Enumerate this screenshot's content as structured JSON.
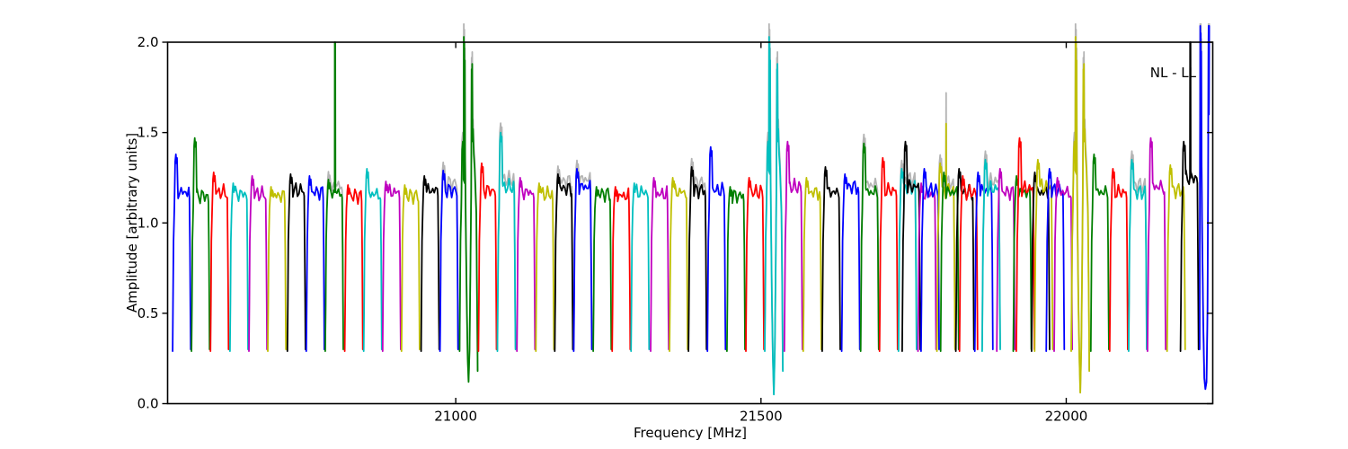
{
  "chart_data": {
    "type": "line",
    "title": "",
    "xlabel": "Frequency [MHz]",
    "ylabel": "Amplitude [arbitrary units]",
    "annotation": "NL - LL",
    "xlim": [
      20528,
      22240
    ],
    "ylim": [
      0.0,
      2.0
    ],
    "xticks": [
      21000,
      21500,
      22000
    ],
    "yticks": [
      0.0,
      0.5,
      1.0,
      1.5,
      2.0
    ],
    "ytick_labels": [
      "0.0",
      "0.5",
      "1.0",
      "1.5",
      "2.0"
    ],
    "grid": false,
    "legend": "none",
    "frame_color": "#000000",
    "background": "#ffffff",
    "palette": {
      "b": "#0000ff",
      "g": "#007f00",
      "r": "#ff0000",
      "c": "#00bfbf",
      "m": "#bf00bf",
      "y": "#bfbf00",
      "k": "#000000",
      "gray": "#b4b4b4"
    },
    "band_fields": "[center_MHz, color, plateau_amp, left_peak_amp, anomaly_code, gray_underlay, dip_min_amp]",
    "anomaly_codes": {
      "0": "normal flat-top bandpass",
      "1": "narrow spike up to 2.0 (clipped at top frame)",
      "2": "double spike above 2.0 with deep absorption dip between",
      "3": "right-edge feature: clipped spikes above frame and deep wide dip",
      "4": "gray-only narrow spike above plateau"
    },
    "bands": [
      [
        20551,
        "b",
        1.17,
        1.38,
        0,
        0,
        0
      ],
      [
        20582,
        "g",
        1.15,
        1.47,
        0,
        0,
        0
      ],
      [
        20613,
        "r",
        1.17,
        1.28,
        0,
        0,
        0
      ],
      [
        20645,
        "c",
        1.16,
        1.22,
        0,
        0,
        0
      ],
      [
        20676,
        "m",
        1.16,
        1.26,
        0,
        0,
        0
      ],
      [
        20707,
        "y",
        1.15,
        1.2,
        0,
        0,
        0
      ],
      [
        20739,
        "k",
        1.18,
        1.27,
        0,
        0,
        0
      ],
      [
        20770,
        "b",
        1.17,
        1.26,
        0,
        0,
        0
      ],
      [
        20801,
        "g",
        1.17,
        1.24,
        1,
        1,
        0
      ],
      [
        20833,
        "r",
        1.15,
        1.21,
        0,
        0,
        0
      ],
      [
        20864,
        "c",
        1.16,
        1.3,
        0,
        0,
        0
      ],
      [
        20895,
        "m",
        1.17,
        1.23,
        0,
        0,
        0
      ],
      [
        20926,
        "y",
        1.15,
        1.21,
        0,
        0,
        0
      ],
      [
        20958,
        "k",
        1.18,
        1.26,
        0,
        0,
        0
      ],
      [
        20989,
        "b",
        1.18,
        1.29,
        0,
        1,
        0
      ],
      [
        21021,
        "g",
        1.2,
        1.45,
        2,
        1,
        0.12
      ],
      [
        21052,
        "r",
        1.18,
        1.33,
        0,
        0,
        0
      ],
      [
        21083,
        "c",
        1.2,
        1.5,
        0,
        1,
        0
      ],
      [
        21115,
        "m",
        1.17,
        1.25,
        0,
        0,
        0
      ],
      [
        21146,
        "y",
        1.16,
        1.22,
        0,
        0,
        0
      ],
      [
        21177,
        "k",
        1.19,
        1.27,
        0,
        1,
        0
      ],
      [
        21208,
        "b",
        1.2,
        1.3,
        0,
        1,
        0
      ],
      [
        21240,
        "g",
        1.16,
        1.2,
        0,
        0,
        0
      ],
      [
        21271,
        "r",
        1.15,
        1.2,
        0,
        0,
        0
      ],
      [
        21302,
        "c",
        1.17,
        1.22,
        0,
        0,
        0
      ],
      [
        21334,
        "m",
        1.16,
        1.25,
        0,
        0,
        0
      ],
      [
        21365,
        "y",
        1.17,
        1.25,
        0,
        0,
        0
      ],
      [
        21396,
        "k",
        1.18,
        1.31,
        0,
        1,
        0
      ],
      [
        21427,
        "b",
        1.18,
        1.42,
        0,
        0,
        0
      ],
      [
        21459,
        "g",
        1.15,
        1.2,
        0,
        0,
        0
      ],
      [
        21490,
        "r",
        1.17,
        1.25,
        0,
        0,
        0
      ],
      [
        21521,
        "c",
        1.25,
        1.45,
        2,
        1,
        0.05
      ],
      [
        21553,
        "m",
        1.2,
        1.45,
        0,
        0,
        0
      ],
      [
        21584,
        "y",
        1.17,
        1.25,
        0,
        0,
        0
      ],
      [
        21615,
        "k",
        1.17,
        1.31,
        0,
        0,
        0
      ],
      [
        21647,
        "b",
        1.2,
        1.27,
        0,
        0,
        0
      ],
      [
        21678,
        "g",
        1.17,
        1.44,
        0,
        1,
        0
      ],
      [
        21709,
        "r",
        1.18,
        1.36,
        0,
        0,
        0
      ],
      [
        21740,
        "c",
        1.2,
        1.3,
        0,
        1,
        0
      ],
      [
        21746,
        "k",
        1.2,
        1.45,
        0,
        0,
        0
      ],
      [
        21772,
        "m",
        1.16,
        1.22,
        0,
        0,
        0
      ],
      [
        21777,
        "b",
        1.18,
        1.3,
        0,
        0,
        0
      ],
      [
        21803,
        "y",
        1.18,
        1.33,
        4,
        1,
        0
      ],
      [
        21809,
        "g",
        1.17,
        1.28,
        0,
        0,
        0
      ],
      [
        21834,
        "k",
        1.17,
        1.3,
        0,
        0,
        0
      ],
      [
        21840,
        "r",
        1.17,
        1.26,
        0,
        0,
        0
      ],
      [
        21865,
        "b",
        1.18,
        1.28,
        0,
        0,
        0
      ],
      [
        21877,
        "c",
        1.19,
        1.35,
        0,
        1,
        0
      ],
      [
        21901,
        "m",
        1.17,
        1.3,
        0,
        0,
        0
      ],
      [
        21928,
        "g",
        1.17,
        1.26,
        0,
        0,
        0
      ],
      [
        21933,
        "r",
        1.19,
        1.47,
        0,
        0,
        0
      ],
      [
        21958,
        "k",
        1.17,
        1.28,
        0,
        0,
        0
      ],
      [
        21963,
        "y",
        1.2,
        1.35,
        0,
        0,
        0
      ],
      [
        21982,
        "b",
        1.18,
        1.3,
        0,
        0,
        0
      ],
      [
        21995,
        "m",
        1.17,
        1.25,
        0,
        0,
        0
      ],
      [
        22023,
        "y",
        1.25,
        1.45,
        2,
        1,
        0.06
      ],
      [
        22055,
        "g",
        1.17,
        1.38,
        0,
        0,
        0
      ],
      [
        22086,
        "r",
        1.17,
        1.3,
        0,
        0,
        0
      ],
      [
        22117,
        "c",
        1.17,
        1.35,
        0,
        1,
        0
      ],
      [
        22148,
        "m",
        1.2,
        1.47,
        0,
        0,
        0
      ],
      [
        22180,
        "y",
        1.18,
        1.32,
        0,
        0,
        0
      ],
      [
        22202,
        "k",
        1.25,
        1.45,
        1,
        0,
        0
      ],
      [
        22228,
        "b",
        1.2,
        1.3,
        3,
        1,
        0.08
      ]
    ]
  }
}
